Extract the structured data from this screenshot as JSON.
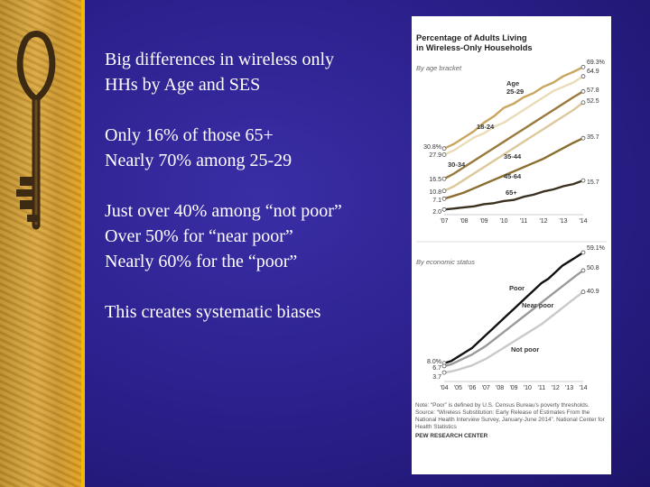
{
  "slide": {
    "bullets": [
      {
        "lines": [
          "Big differences in wireless only",
          "HHs by Age and SES"
        ]
      },
      {
        "lines": [
          "Only 16% of those 65+",
          "Nearly 70% among 25-29"
        ]
      },
      {
        "lines": [
          "Just over 40% among “not poor”",
          "Over 50% for “near poor”",
          "Nearly 60% for the “poor”"
        ]
      },
      {
        "lines": [
          "This creates systematic biases"
        ]
      }
    ],
    "image": {
      "description_icon": "skeleton-key-icon"
    }
  },
  "chart_data": [
    {
      "type": "line",
      "title": "Percentage of Adults Living in Wireless-Only Households",
      "subtitle": "By age bracket",
      "x": [
        "'07",
        "'08",
        "'09",
        "'10",
        "'11",
        "'12",
        "'13",
        "'14"
      ],
      "x_values": [
        2007,
        2008,
        2009,
        2010,
        2011,
        2012,
        2013,
        2014
      ],
      "ylim": [
        0,
        72
      ],
      "series": [
        {
          "name": "25-29",
          "label": "Age\n25-29",
          "color": "#c9a55e",
          "start_label": "30.8%",
          "end_label": "69.3%",
          "values": [
            [
              2007,
              30.8
            ],
            [
              2007.5,
              33
            ],
            [
              2008,
              36
            ],
            [
              2008.5,
              39
            ],
            [
              2009,
              43
            ],
            [
              2009.5,
              46
            ],
            [
              2010,
              50
            ],
            [
              2010.5,
              52
            ],
            [
              2011,
              55
            ],
            [
              2011.5,
              57
            ],
            [
              2012,
              60
            ],
            [
              2012.5,
              62
            ],
            [
              2013,
              65
            ],
            [
              2013.5,
              67
            ],
            [
              2014,
              69.3
            ]
          ]
        },
        {
          "name": "18-24",
          "label": "18-24",
          "color": "#eadcb8",
          "start_label": "27.9",
          "end_label": "64.9",
          "values": [
            [
              2007,
              27.9
            ],
            [
              2007.5,
              30
            ],
            [
              2008,
              33
            ],
            [
              2008.5,
              36
            ],
            [
              2009,
              38
            ],
            [
              2009.5,
              41
            ],
            [
              2010,
              43
            ],
            [
              2010.5,
              46
            ],
            [
              2011,
              49
            ],
            [
              2011.5,
              52
            ],
            [
              2012,
              55
            ],
            [
              2012.5,
              58
            ],
            [
              2013,
              60
            ],
            [
              2013.5,
              62
            ],
            [
              2014,
              64.9
            ]
          ]
        },
        {
          "name": "30-34",
          "label": "30-34",
          "color": "#9a7a3c",
          "start_label": "16.5",
          "end_label": "57.8",
          "values": [
            [
              2007,
              16.5
            ],
            [
              2007.5,
              19
            ],
            [
              2008,
              22
            ],
            [
              2008.5,
              25
            ],
            [
              2009,
              28
            ],
            [
              2009.5,
              31
            ],
            [
              2010,
              34
            ],
            [
              2010.5,
              37
            ],
            [
              2011,
              40
            ],
            [
              2011.5,
              43
            ],
            [
              2012,
              46
            ],
            [
              2012.5,
              49
            ],
            [
              2013,
              52
            ],
            [
              2013.5,
              55
            ],
            [
              2014,
              57.8
            ]
          ]
        },
        {
          "name": "35-44",
          "label": "35-44",
          "color": "#dcc89a",
          "start_label": "10.8",
          "end_label": "52.5",
          "values": [
            [
              2007,
              10.8
            ],
            [
              2007.5,
              13
            ],
            [
              2008,
              16
            ],
            [
              2008.5,
              19
            ],
            [
              2009,
              22
            ],
            [
              2009.5,
              25
            ],
            [
              2010,
              28
            ],
            [
              2010.5,
              31
            ],
            [
              2011,
              34
            ],
            [
              2011.5,
              37
            ],
            [
              2012,
              40
            ],
            [
              2012.5,
              43
            ],
            [
              2013,
              46
            ],
            [
              2013.5,
              49
            ],
            [
              2014,
              52.5
            ]
          ]
        },
        {
          "name": "45-64",
          "label": "45-64",
          "color": "#8a6e2e",
          "start_label": "7.1",
          "end_label": "35.7",
          "values": [
            [
              2007,
              7.1
            ],
            [
              2007.5,
              8.5
            ],
            [
              2008,
              10
            ],
            [
              2008.5,
              12
            ],
            [
              2009,
              14
            ],
            [
              2009.5,
              16
            ],
            [
              2010,
              18
            ],
            [
              2010.5,
              20
            ],
            [
              2011,
              22
            ],
            [
              2011.5,
              24
            ],
            [
              2012,
              26
            ],
            [
              2012.5,
              28.5
            ],
            [
              2013,
              31
            ],
            [
              2013.5,
              33.5
            ],
            [
              2014,
              35.7
            ]
          ]
        },
        {
          "name": "65+",
          "label": "65+",
          "color": "#3a3020",
          "start_label": "2.0",
          "end_label": "15.7",
          "values": [
            [
              2007,
              2.0
            ],
            [
              2007.5,
              2.5
            ],
            [
              2008,
              3.0
            ],
            [
              2008.5,
              3.5
            ],
            [
              2009,
              4.5
            ],
            [
              2009.5,
              5
            ],
            [
              2010,
              6
            ],
            [
              2010.5,
              6.5
            ],
            [
              2011,
              8
            ],
            [
              2011.5,
              9
            ],
            [
              2012,
              10.5
            ],
            [
              2012.5,
              11.5
            ],
            [
              2013,
              13
            ],
            [
              2013.5,
              14
            ],
            [
              2014,
              15.7
            ]
          ]
        }
      ]
    },
    {
      "type": "line",
      "subtitle": "By economic status",
      "x": [
        "'04",
        "'05",
        "'06",
        "'07",
        "'08",
        "'09",
        "'10",
        "'11",
        "'12",
        "'13",
        "'14"
      ],
      "x_values": [
        2004,
        2005,
        2006,
        2007,
        2008,
        2009,
        2010,
        2011,
        2012,
        2013,
        2014
      ],
      "ylim": [
        0,
        62
      ],
      "series": [
        {
          "name": "Poor",
          "label": "Poor",
          "color": "#111111",
          "start_label": "8.0%",
          "end_label": "59.1%",
          "values": [
            [
              2004,
              8.0
            ],
            [
              2004.5,
              9
            ],
            [
              2005,
              11
            ],
            [
              2005.5,
              13
            ],
            [
              2006,
              15
            ],
            [
              2006.5,
              18
            ],
            [
              2007,
              21
            ],
            [
              2007.5,
              24
            ],
            [
              2008,
              27
            ],
            [
              2008.5,
              30
            ],
            [
              2009,
              33
            ],
            [
              2009.5,
              36
            ],
            [
              2010,
              39
            ],
            [
              2010.5,
              42
            ],
            [
              2011,
              45
            ],
            [
              2011.5,
              47
            ],
            [
              2012,
              50
            ],
            [
              2012.5,
              53
            ],
            [
              2013,
              55
            ],
            [
              2013.5,
              57
            ],
            [
              2014,
              59.1
            ]
          ]
        },
        {
          "name": "Near poor",
          "label": "Near poor",
          "color": "#9a9a9a",
          "start_label": "6.7",
          "end_label": "50.8",
          "values": [
            [
              2004,
              6.7
            ],
            [
              2004.5,
              7.5
            ],
            [
              2005,
              9
            ],
            [
              2005.5,
              10.5
            ],
            [
              2006,
              12
            ],
            [
              2006.5,
              14
            ],
            [
              2007,
              16
            ],
            [
              2007.5,
              18.5
            ],
            [
              2008,
              21
            ],
            [
              2008.5,
              23.5
            ],
            [
              2009,
              26
            ],
            [
              2009.5,
              28.5
            ],
            [
              2010,
              31
            ],
            [
              2010.5,
              33.5
            ],
            [
              2011,
              36
            ],
            [
              2011.5,
              38.5
            ],
            [
              2012,
              41
            ],
            [
              2012.5,
              43.5
            ],
            [
              2013,
              46
            ],
            [
              2013.5,
              48.5
            ],
            [
              2014,
              50.8
            ]
          ]
        },
        {
          "name": "Not poor",
          "label": "Not poor",
          "color": "#c9c9c9",
          "start_label": "3.7",
          "end_label": "40.9",
          "values": [
            [
              2004,
              3.7
            ],
            [
              2004.5,
              4.2
            ],
            [
              2005,
              5
            ],
            [
              2005.5,
              6
            ],
            [
              2006,
              7
            ],
            [
              2006.5,
              8.5
            ],
            [
              2007,
              10
            ],
            [
              2007.5,
              12
            ],
            [
              2008,
              14
            ],
            [
              2008.5,
              16
            ],
            [
              2009,
              18
            ],
            [
              2009.5,
              20
            ],
            [
              2010,
              22
            ],
            [
              2010.5,
              24
            ],
            [
              2011,
              26
            ],
            [
              2011.5,
              28.5
            ],
            [
              2012,
              31
            ],
            [
              2012.5,
              33.5
            ],
            [
              2013,
              36
            ],
            [
              2013.5,
              38.5
            ],
            [
              2014,
              40.9
            ]
          ]
        }
      ]
    }
  ],
  "notes": {
    "note": "Note: “Poor” is defined by U.S. Census Bureau’s poverty thresholds.",
    "source": "Source: “Wireless Substitution: Early Release of Estimates From the National Health Interview Survey, January-June 2014”. National Center for Health Statistics",
    "credit": "PEW RESEARCH CENTER"
  }
}
